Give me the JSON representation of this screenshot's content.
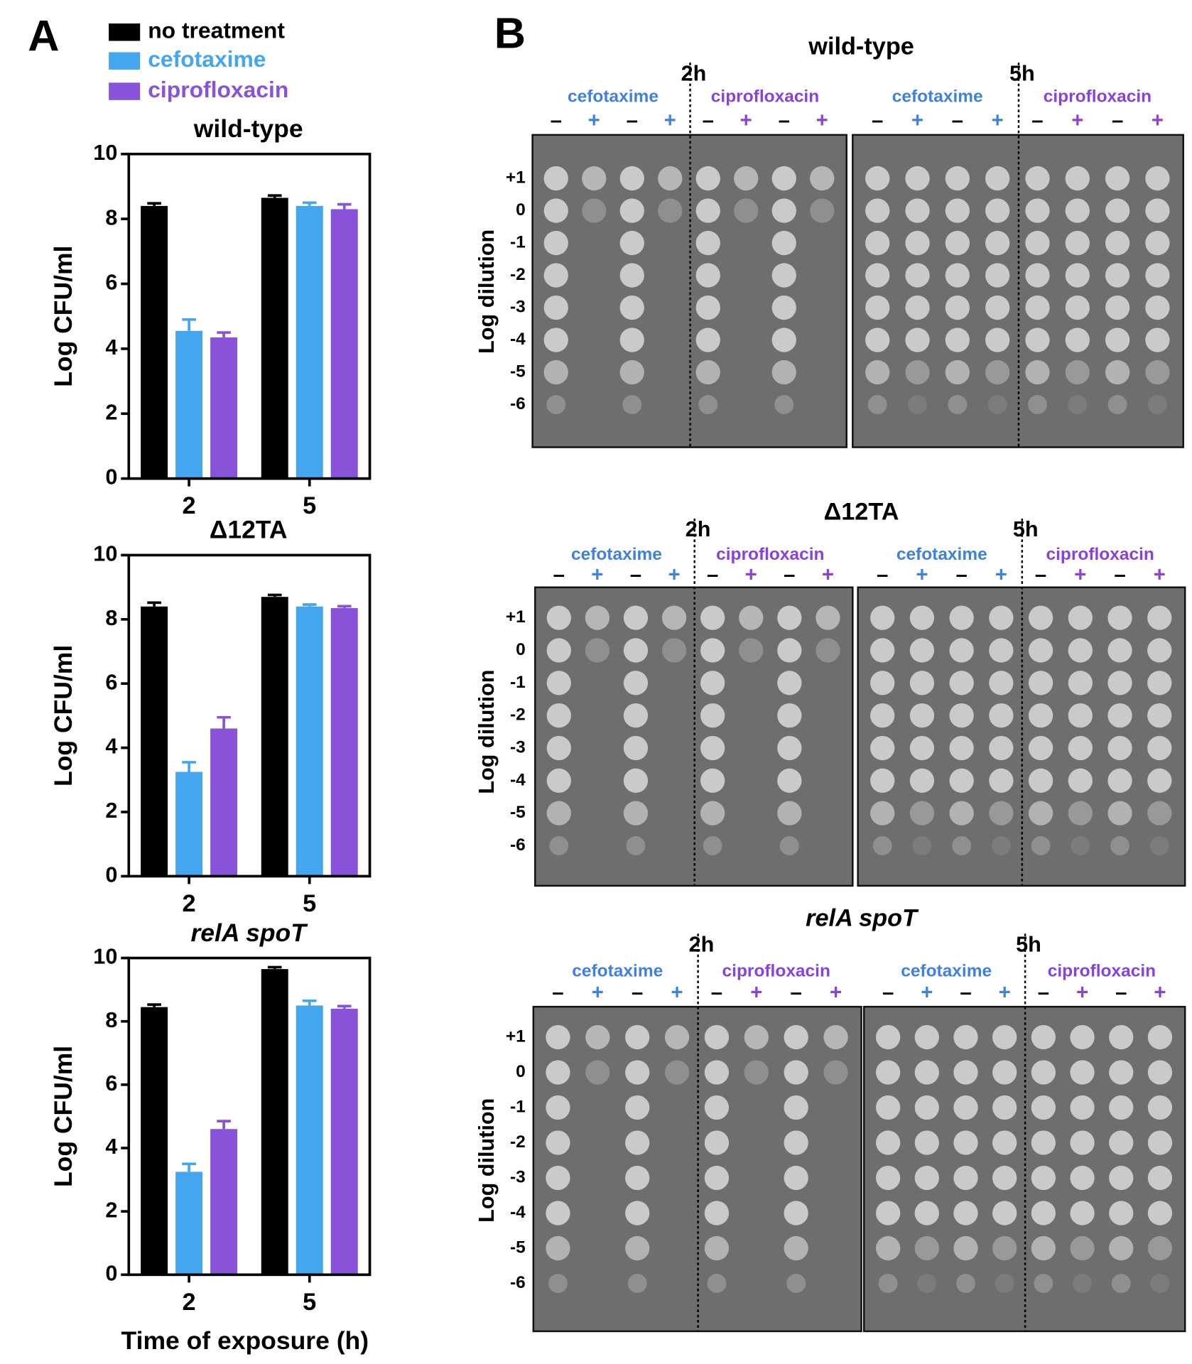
{
  "panel_labels": [
    "A",
    "B"
  ],
  "chart_data": [
    {
      "type": "bar",
      "title": "wild-type",
      "y_label": "Log CFU/ml",
      "categories": [
        "2",
        "5"
      ],
      "ylim": [
        0,
        10
      ],
      "yticks": [
        0,
        2,
        4,
        6,
        8,
        10
      ],
      "series": [
        {
          "name": "no treatment",
          "color": "#000000",
          "values": [
            8.4,
            8.65
          ],
          "errors": [
            0.08,
            0.07
          ]
        },
        {
          "name": "cefotaxime",
          "color": "#45a6f0",
          "values": [
            4.55,
            8.4
          ],
          "errors": [
            0.35,
            0.1
          ]
        },
        {
          "name": "ciprofloxacin",
          "color": "#8853d8",
          "values": [
            4.35,
            8.3
          ],
          "errors": [
            0.15,
            0.15
          ]
        }
      ]
    },
    {
      "type": "bar",
      "title": "Δ12TA",
      "y_label": "Log CFU/ml",
      "categories": [
        "2",
        "5"
      ],
      "ylim": [
        0,
        10
      ],
      "yticks": [
        0,
        2,
        4,
        6,
        8,
        10
      ],
      "series": [
        {
          "color": "#000000",
          "values": [
            8.4,
            8.7
          ],
          "errors": [
            0.12,
            0.06
          ]
        },
        {
          "color": "#45a6f0",
          "values": [
            3.25,
            8.4
          ],
          "errors": [
            0.3,
            0.06
          ]
        },
        {
          "color": "#8853d8",
          "values": [
            4.6,
            8.35
          ],
          "errors": [
            0.35,
            0.06
          ]
        }
      ]
    },
    {
      "type": "bar",
      "title": "relA spoT",
      "y_label": "Log CFU/ml",
      "x_label": "Time of exposure (h)",
      "categories": [
        "2",
        "5"
      ],
      "ylim": [
        0,
        10
      ],
      "yticks": [
        0,
        2,
        4,
        6,
        8,
        10
      ],
      "series": [
        {
          "color": "#000000",
          "values": [
            8.45,
            9.65
          ],
          "errors": [
            0.08,
            0.06
          ]
        },
        {
          "color": "#45a6f0",
          "values": [
            3.25,
            8.5
          ],
          "errors": [
            0.25,
            0.15
          ]
        },
        {
          "color": "#8853d8",
          "values": [
            4.6,
            8.4
          ],
          "errors": [
            0.25,
            0.08
          ]
        }
      ]
    }
  ],
  "plates": [
    {
      "title": "wild-type",
      "times": [
        "2h",
        "5h"
      ],
      "drugs": [
        "cefotaxime",
        "ciprofloxacin"
      ],
      "drug_colors": [
        "#3f82dc",
        "#8a42d6"
      ],
      "signs": [
        "–",
        "+"
      ],
      "y_label": "Log dilution",
      "dilutions": [
        "+1",
        "0",
        "-1",
        "-2",
        "-3",
        "-4",
        "-5",
        "-6"
      ]
    },
    {
      "title": "Δ12TA",
      "times": [
        "2h",
        "5h"
      ],
      "drugs": [
        "cefotaxime",
        "ciprofloxacin"
      ],
      "drug_colors": [
        "#3f82dc",
        "#8a42d6"
      ],
      "signs": [
        "–",
        "+"
      ],
      "y_label": "Log dilution",
      "dilutions": [
        "+1",
        "0",
        "-1",
        "-2",
        "-3",
        "-4",
        "-5",
        "-6"
      ]
    },
    {
      "title": "relA spoT",
      "times": [
        "2h",
        "5h"
      ],
      "drugs": [
        "cefotaxime",
        "ciprofloxacin"
      ],
      "drug_colors": [
        "#3f82dc",
        "#8a42d6"
      ],
      "signs": [
        "–",
        "+"
      ],
      "y_label": "Log dilution",
      "dilutions": [
        "+1",
        "0",
        "-1",
        "-2",
        "-3",
        "-4",
        "-5",
        "-6"
      ]
    }
  ]
}
